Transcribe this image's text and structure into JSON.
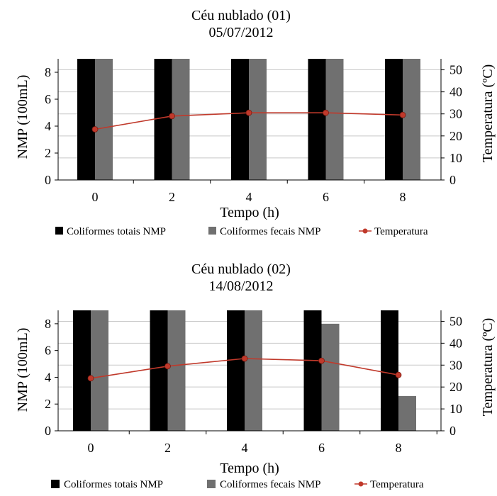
{
  "chart_data": [
    {
      "type": "bar",
      "title": "Céu nublado (01)",
      "subtitle": "05/07/2012",
      "categories": [
        "0",
        "2",
        "4",
        "6",
        "8"
      ],
      "series": [
        {
          "name": "Coliformes totais NMP",
          "kind": "bar",
          "color": "#000000",
          "values": [
            9,
            9,
            9,
            9,
            9
          ]
        },
        {
          "name": "Coliformes fecais NMP",
          "kind": "bar",
          "color": "#707070",
          "values": [
            9,
            9,
            9,
            9,
            9
          ]
        },
        {
          "name": "Temperatura",
          "kind": "line",
          "axis": "right",
          "color": "#c0392b",
          "values": [
            23,
            29,
            30.5,
            30.5,
            29.5
          ]
        }
      ],
      "xlabel": "Tempo (h)",
      "ylabel": "NMP (100mL)",
      "ylabel_right": "Temperatura (ºC)",
      "ylim": [
        0,
        9
      ],
      "y_ticks": [
        "0",
        "2",
        "4",
        "6",
        "8"
      ],
      "ylim_right": [
        0,
        55
      ],
      "y_ticks_right": [
        "0",
        "10",
        "20",
        "30",
        "40",
        "50"
      ],
      "legend": [
        "Coliformes totais NMP",
        "Coliformes fecais NMP",
        "Temperatura"
      ],
      "legend_position": "bottom",
      "grid": true
    },
    {
      "type": "bar",
      "title": "Céu nublado (02)",
      "subtitle": "14/08/2012",
      "categories": [
        "0",
        "2",
        "4",
        "6",
        "8"
      ],
      "series": [
        {
          "name": "Coliformes totais NMP",
          "kind": "bar",
          "color": "#000000",
          "values": [
            9,
            9,
            9,
            9,
            9
          ]
        },
        {
          "name": "Coliformes fecais NMP",
          "kind": "bar",
          "color": "#707070",
          "values": [
            9,
            9,
            9,
            8,
            2.6
          ]
        },
        {
          "name": "Temperatura",
          "kind": "line",
          "axis": "right",
          "color": "#c0392b",
          "values": [
            24,
            29.5,
            33,
            32,
            25.5
          ]
        }
      ],
      "xlabel": "Tempo (h)",
      "ylabel": "NMP (100mL)",
      "ylabel_right": "Temperatura (ºC)",
      "ylim": [
        0,
        9
      ],
      "y_ticks": [
        "0",
        "2",
        "4",
        "6",
        "8"
      ],
      "ylim_right": [
        0,
        55
      ],
      "y_ticks_right": [
        "0",
        "10",
        "20",
        "30",
        "40",
        "50"
      ],
      "legend": [
        "Coliformes totais NMP",
        "Coliformes fecais NMP",
        "Temperatura"
      ],
      "legend_position": "bottom",
      "grid": true
    }
  ]
}
